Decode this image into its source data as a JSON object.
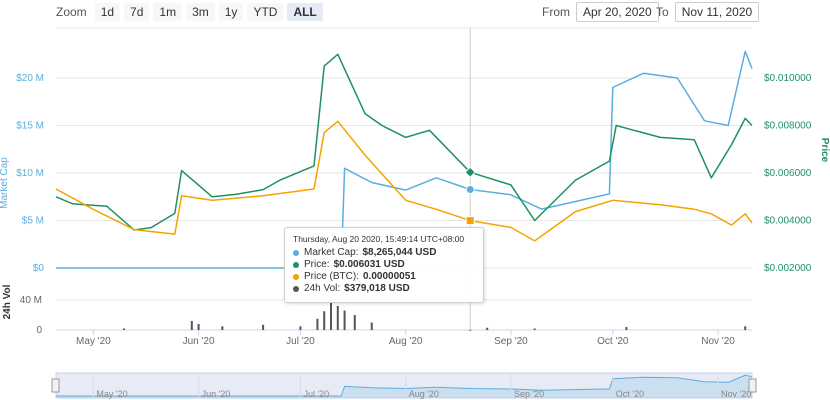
{
  "zoom": {
    "label": "Zoom",
    "buttons": [
      "1d",
      "7d",
      "1m",
      "3m",
      "1y",
      "YTD",
      "ALL"
    ],
    "active": "ALL"
  },
  "range": {
    "from_label": "From",
    "from_value": "Apr 20, 2020",
    "to_label": "To",
    "to_value": "Nov 11, 2020"
  },
  "colors": {
    "market_cap": "#5aaee0",
    "price": "#1e9160",
    "price_btc": "#f5a300",
    "volume": "#555555",
    "grid": "#e6e6e6"
  },
  "tooltip": {
    "date": "Thursday, Aug 20 2020, 15:49:14 UTC+08:00",
    "rows": [
      {
        "label": "Market Cap:",
        "value": "$8,265,044 USD",
        "color": "#5aaee0"
      },
      {
        "label": "Price:",
        "value": "$0.006031 USD",
        "color": "#1e9160"
      },
      {
        "label": "Price (BTC):",
        "value": "0.00000051",
        "color": "#f5a300"
      },
      {
        "label": "24h Vol:",
        "value": "$379,018 USD",
        "color": "#555555"
      }
    ]
  },
  "chart_data": {
    "type": "line",
    "x_tick_labels": [
      "May '20",
      "Jun '20",
      "Jul '20",
      "Aug '20",
      "Sep '20",
      "Oct '20",
      "Nov '20"
    ],
    "navigator_tick_labels": [
      "May '20",
      "Jun '20",
      "Jul '20",
      "Aug '20",
      "Sep '20",
      "Oct '20",
      "Nov '20"
    ],
    "left_axis": {
      "label": "Market Cap",
      "ticks": [
        "$0",
        "$5 M",
        "$10 M",
        "$15 M",
        "$20 M"
      ],
      "ylim": [
        0,
        20000000
      ]
    },
    "right_axis": {
      "label": "Price",
      "ticks": [
        "$0.002000",
        "$0.004000",
        "$0.006000",
        "$0.008000",
        "$0.010000"
      ],
      "ylim": [
        0.002,
        0.01
      ]
    },
    "volume_axis": {
      "label": "24h Vol",
      "ticks": [
        "0",
        "40 M"
      ],
      "ylim": [
        0,
        40000000
      ]
    },
    "date_range": [
      "2020-04-20",
      "2020-11-11"
    ],
    "series": [
      {
        "name": "Market Cap",
        "axis": "left",
        "x": [
          "2020-04-20",
          "2020-07-13",
          "2020-07-14",
          "2020-07-22",
          "2020-08-01",
          "2020-08-10",
          "2020-08-20",
          "2020-09-01",
          "2020-09-10",
          "2020-09-20",
          "2020-09-30",
          "2020-10-01",
          "2020-10-10",
          "2020-10-20",
          "2020-10-28",
          "2020-11-04",
          "2020-11-09",
          "2020-11-11"
        ],
        "values": [
          0,
          0,
          10500000,
          9000000,
          8200000,
          9500000,
          8265044,
          7700000,
          6200000,
          7000000,
          7800000,
          19000000,
          20500000,
          20000000,
          15500000,
          15000000,
          22800000,
          21000000
        ]
      },
      {
        "name": "Price",
        "axis": "right",
        "x": [
          "2020-04-20",
          "2020-04-25",
          "2020-05-05",
          "2020-05-13",
          "2020-05-18",
          "2020-05-25",
          "2020-05-27",
          "2020-06-05",
          "2020-06-12",
          "2020-06-20",
          "2020-06-25",
          "2020-07-05",
          "2020-07-08",
          "2020-07-12",
          "2020-07-20",
          "2020-07-25",
          "2020-08-01",
          "2020-08-08",
          "2020-08-20",
          "2020-09-01",
          "2020-09-08",
          "2020-09-20",
          "2020-09-30",
          "2020-10-02",
          "2020-10-15",
          "2020-10-25",
          "2020-10-30",
          "2020-11-05",
          "2020-11-09",
          "2020-11-11"
        ],
        "values": [
          0.005,
          0.0047,
          0.0046,
          0.0036,
          0.0037,
          0.0043,
          0.0061,
          0.005,
          0.0051,
          0.0053,
          0.0057,
          0.0063,
          0.0105,
          0.011,
          0.0085,
          0.008,
          0.0075,
          0.0078,
          0.006031,
          0.0055,
          0.004,
          0.0057,
          0.0065,
          0.008,
          0.0075,
          0.0074,
          0.0058,
          0.0072,
          0.0083,
          0.008
        ]
      },
      {
        "name": "Price (BTC)",
        "axis": "right",
        "x": [
          "2020-04-20",
          "2020-05-01",
          "2020-05-13",
          "2020-05-25",
          "2020-05-27",
          "2020-06-05",
          "2020-06-20",
          "2020-07-05",
          "2020-07-08",
          "2020-07-12",
          "2020-07-20",
          "2020-08-01",
          "2020-08-10",
          "2020-08-20",
          "2020-09-01",
          "2020-09-08",
          "2020-09-20",
          "2020-10-01",
          "2020-10-15",
          "2020-10-25",
          "2020-10-30",
          "2020-11-05",
          "2020-11-09",
          "2020-11-11"
        ],
        "values": [
          6.5e-07,
          5.6e-07,
          4.7e-07,
          4.5e-07,
          6.2e-07,
          6e-07,
          6.2e-07,
          6.5e-07,
          9e-07,
          9.5e-07,
          8e-07,
          6e-07,
          5.6e-07,
          5.1e-07,
          4.8e-07,
          4.2e-07,
          5.5e-07,
          6e-07,
          5.8e-07,
          5.6e-07,
          5.4e-07,
          4.9e-07,
          5.4e-07,
          5e-07
        ]
      },
      {
        "name": "24h Vol",
        "axis": "volume",
        "x": [
          "2020-05-10",
          "2020-05-30",
          "2020-06-01",
          "2020-06-08",
          "2020-06-20",
          "2020-07-01",
          "2020-07-06",
          "2020-07-08",
          "2020-07-10",
          "2020-07-12",
          "2020-07-14",
          "2020-07-17",
          "2020-07-22",
          "2020-08-20",
          "2020-08-25",
          "2020-09-08",
          "2020-10-05",
          "2020-11-09"
        ],
        "values": [
          2000000,
          12000000,
          8000000,
          5000000,
          7000000,
          5000000,
          15000000,
          25000000,
          40000000,
          32000000,
          26000000,
          20000000,
          10000000,
          379018,
          3000000,
          2000000,
          4000000,
          5000000
        ]
      }
    ]
  }
}
